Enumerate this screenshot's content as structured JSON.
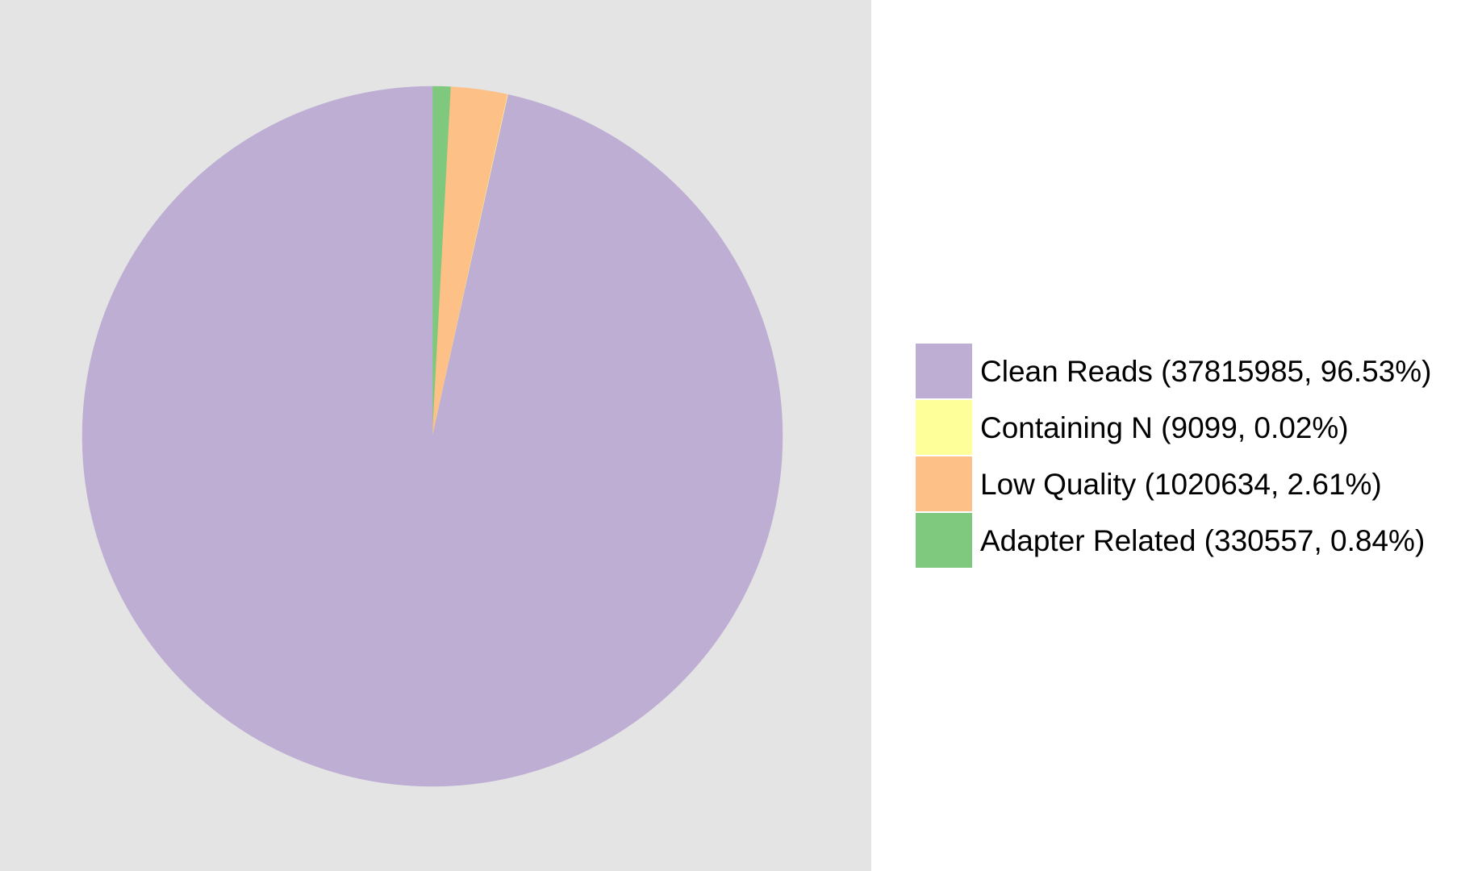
{
  "chart_data": {
    "type": "pie",
    "title": "",
    "legend_position": "right",
    "background": "#e4e4e4",
    "start_direction": "12 o'clock",
    "clockwise": true,
    "slices": [
      {
        "label": "Clean Reads",
        "value": 37815985,
        "percent": 96.53,
        "color": "#beaed4",
        "legend_text": "Clean Reads (37815985, 96.53%)"
      },
      {
        "label": "Containing N",
        "value": 9099,
        "percent": 0.02,
        "color": "#ffff99",
        "legend_text": "Containing N (9099, 0.02%)"
      },
      {
        "label": "Low Quality",
        "value": 1020634,
        "percent": 2.61,
        "color": "#fdc086",
        "legend_text": "Low Quality (1020634, 2.61%)"
      },
      {
        "label": "Adapter Related",
        "value": 330557,
        "percent": 0.84,
        "color": "#7fc97f",
        "legend_text": "Adapter Related (330557, 0.84%)"
      }
    ]
  }
}
